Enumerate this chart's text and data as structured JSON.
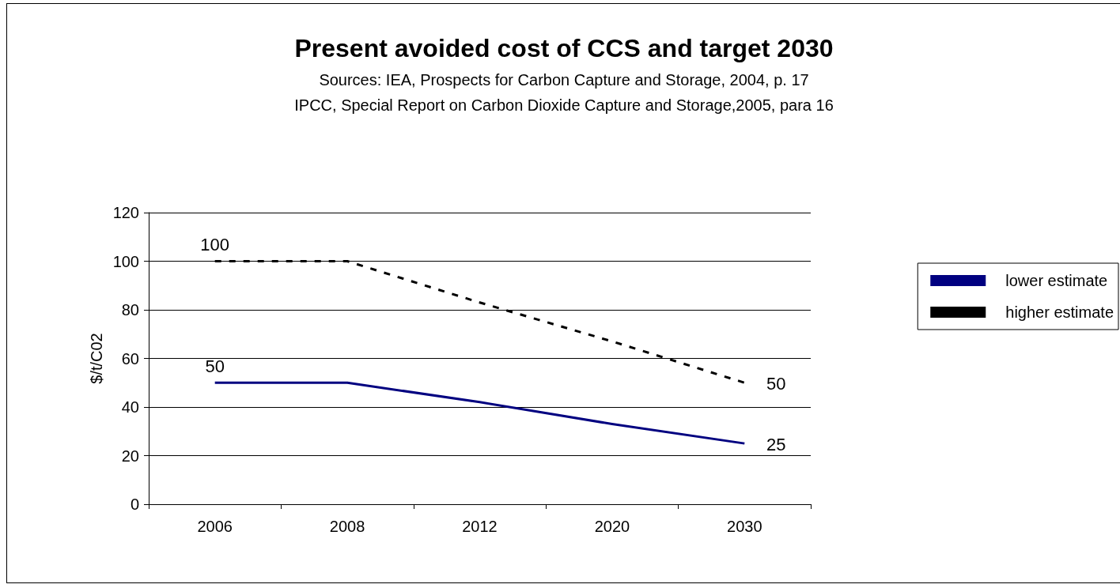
{
  "chart_data": {
    "type": "line",
    "title": "Present avoided cost of CCS and target 2030",
    "subtitle": "Sources: IEA, Prospects for Carbon Capture and Storage, 2004, p. 17\nIPCC, Special Report on Carbon Dioxide Capture and Storage,2005, para 16",
    "ylabel": "$/t/C02",
    "categories": [
      "2006",
      "2008",
      "2012",
      "2020",
      "2030"
    ],
    "series": [
      {
        "name": "lower estimate",
        "color": "#000080",
        "line_style": "solid",
        "values": [
          50,
          50,
          42,
          33,
          25
        ],
        "value_labels": [
          "50",
          null,
          null,
          null,
          "25"
        ]
      },
      {
        "name": "higher estimate",
        "color": "#000000",
        "line_style": "dashed",
        "values": [
          100,
          100,
          83,
          67,
          50
        ],
        "value_labels": [
          "100",
          null,
          null,
          null,
          "50"
        ]
      }
    ],
    "ylim": [
      0,
      120
    ],
    "yticks": [
      0,
      20,
      40,
      60,
      80,
      100,
      120
    ],
    "grid": "y",
    "legend": "right",
    "marker": "none"
  }
}
